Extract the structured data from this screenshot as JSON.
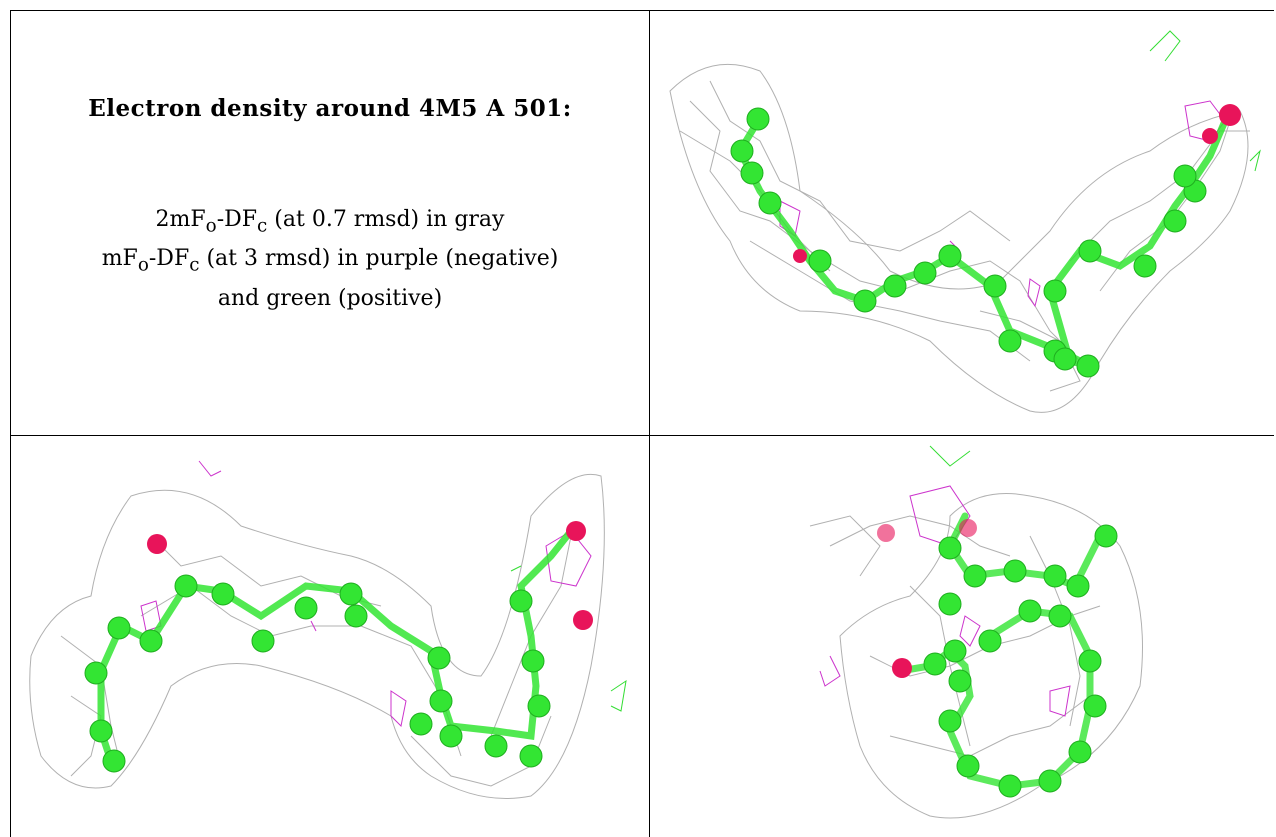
{
  "caption": {
    "title": "Electron density around 4M5 A 501:",
    "line1_prefix": "2mF",
    "line1_sub1": "o",
    "line1_mid": "-DF",
    "line1_sub2": "c",
    "line1_suffix": " (at 0.7 rmsd) in gray",
    "line2_prefix": "mF",
    "line2_sub1": "o",
    "line2_mid": "-DF",
    "line2_sub2": "c",
    "line2_suffix": " (at 3 rmsd) in purple (negative)",
    "line3": "and green (positive)"
  },
  "colors": {
    "map_2fofc": "#9a9a9a",
    "map_negative": "#cc33cc",
    "map_positive": "#33dd33",
    "carbon": "#33e533",
    "oxygen": "#e8145a"
  }
}
